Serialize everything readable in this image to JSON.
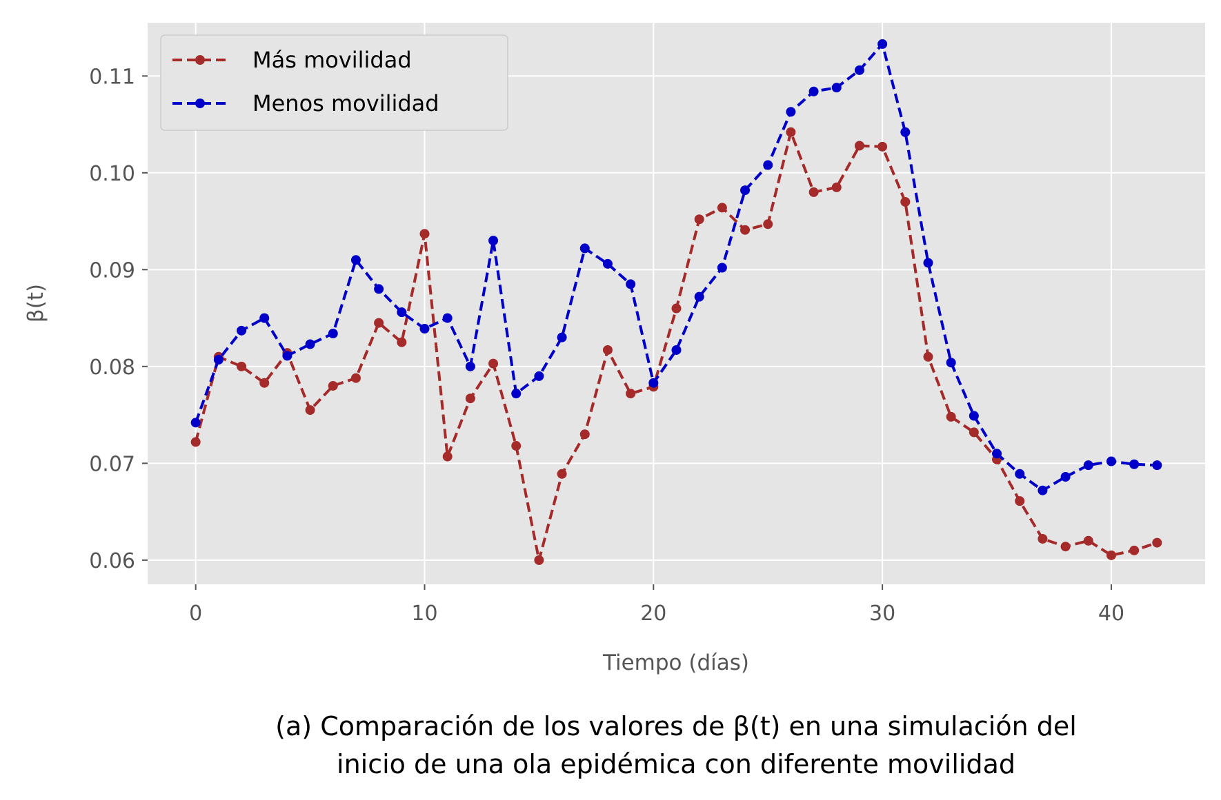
{
  "chart_data": {
    "type": "line",
    "xlabel": "Tiempo (días)",
    "ylabel": "β(t)",
    "xlim": [
      -2.1,
      44.1
    ],
    "ylim": [
      0.0575,
      0.1155
    ],
    "x_ticks": [
      0,
      10,
      20,
      30,
      40
    ],
    "x_tick_labels": [
      "0",
      "10",
      "20",
      "30",
      "40"
    ],
    "y_ticks": [
      0.06,
      0.07,
      0.08,
      0.09,
      0.1,
      0.11
    ],
    "y_tick_labels": [
      "0.06",
      "0.07",
      "0.08",
      "0.09",
      "0.10",
      "0.11"
    ],
    "grid": true,
    "legend_position": "top-left",
    "background_color": "#e5e5e5",
    "grid_color": "#ffffff",
    "x": [
      0,
      1,
      2,
      3,
      4,
      5,
      6,
      7,
      8,
      9,
      10,
      11,
      12,
      13,
      14,
      15,
      16,
      17,
      18,
      19,
      20,
      21,
      22,
      23,
      24,
      25,
      26,
      27,
      28,
      29,
      30,
      31,
      32,
      33,
      34,
      35,
      36,
      37,
      38,
      39,
      40,
      41,
      42
    ],
    "series": [
      {
        "name": "Más movilidad",
        "color": "#a52a2a",
        "line_style": "dashed",
        "marker": "circle",
        "values": [
          0.0722,
          0.081,
          0.08,
          0.0783,
          0.0814,
          0.0755,
          0.078,
          0.0788,
          0.0845,
          0.0825,
          0.0937,
          0.0707,
          0.0767,
          0.0803,
          0.0718,
          0.06,
          0.0689,
          0.073,
          0.0817,
          0.0772,
          0.0779,
          0.086,
          0.0952,
          0.0964,
          0.0941,
          0.0947,
          0.1042,
          0.098,
          0.0985,
          0.1028,
          0.1027,
          0.097,
          0.081,
          0.0748,
          0.0732,
          0.0704,
          0.0661,
          0.0622,
          0.0614,
          0.062,
          0.0605,
          0.061,
          0.0618
        ]
      },
      {
        "name": "Menos movilidad",
        "color": "#0000c8",
        "line_style": "dashed",
        "marker": "circle",
        "values": [
          0.0742,
          0.0807,
          0.0837,
          0.085,
          0.0811,
          0.0823,
          0.0834,
          0.091,
          0.088,
          0.0856,
          0.0839,
          0.085,
          0.08,
          0.093,
          0.0772,
          0.079,
          0.083,
          0.0922,
          0.0906,
          0.0885,
          0.0783,
          0.0817,
          0.0872,
          0.0902,
          0.0982,
          0.1008,
          0.1063,
          0.1084,
          0.1088,
          0.1106,
          0.1133,
          0.1042,
          0.0907,
          0.0804,
          0.0749,
          0.071,
          0.0689,
          0.0672,
          0.0686,
          0.0698,
          0.0702,
          0.0699,
          0.0698
        ]
      }
    ]
  },
  "caption": {
    "line1": "(a) Comparación de los valores de β(t) en una simulación del",
    "line2": "inicio de una ola epidémica con diferente movilidad"
  }
}
